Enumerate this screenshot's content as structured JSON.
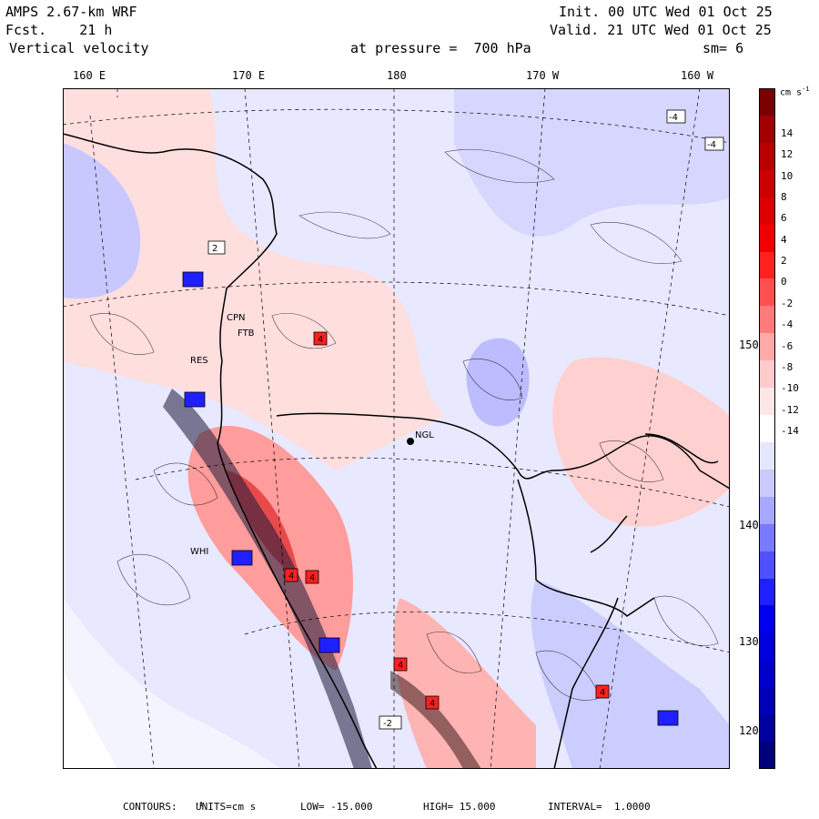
{
  "header": {
    "model": "AMPS 2.67-km WRF",
    "fcst": "Fcst.    21 h",
    "field": "Vertical velocity",
    "init": "Init. 00 UTC Wed 01 Oct 25",
    "valid": "Valid. 21 UTC Wed 01 Oct 25",
    "level": "at pressure =  700 hPa",
    "smooth": "sm= 6"
  },
  "lon_labels": [
    "160 E",
    "170 E",
    "180",
    "170 W",
    "160 W"
  ],
  "lat_labels": [
    "150 W",
    "140 W",
    "130 W",
    "120 W"
  ],
  "stations": [
    "CPN",
    "FTB",
    "RES",
    "NGL",
    "WHI"
  ],
  "colorbar": {
    "unit": "cm s",
    "unit_exp": "-1",
    "ticks": [
      "14",
      "12",
      "10",
      "8",
      "6",
      "4",
      "2",
      "0",
      "-2",
      "-4",
      "-6",
      "-8",
      "-10",
      "-12",
      "-14"
    ],
    "colors_top_to_bottom": [
      "#7a0000",
      "#a00000",
      "#b80000",
      "#cc0000",
      "#de0000",
      "#f00000",
      "#ff2020",
      "#ff5050",
      "#ff7a7a",
      "#ffa8a8",
      "#ffcaca",
      "#ffe6e6",
      "#ffffff",
      "#e6e6ff",
      "#cacaff",
      "#a8a8ff",
      "#7a7aff",
      "#5050ff",
      "#2020ff",
      "#0000f0",
      "#0000de",
      "#0000cc",
      "#0000b8",
      "#0000a0",
      "#00007a"
    ]
  },
  "footer": {
    "contours": "CONTOURS:",
    "units": "UNITS=cm s",
    "units_exp": "-1",
    "low": "LOW= -15.000",
    "high": "HIGH= 15.000",
    "interval": "INTERVAL=  1.0000"
  },
  "highlows": [
    "4",
    "4",
    "4",
    "4",
    "4",
    "4",
    "-4",
    "-4",
    "2",
    "-2"
  ]
}
